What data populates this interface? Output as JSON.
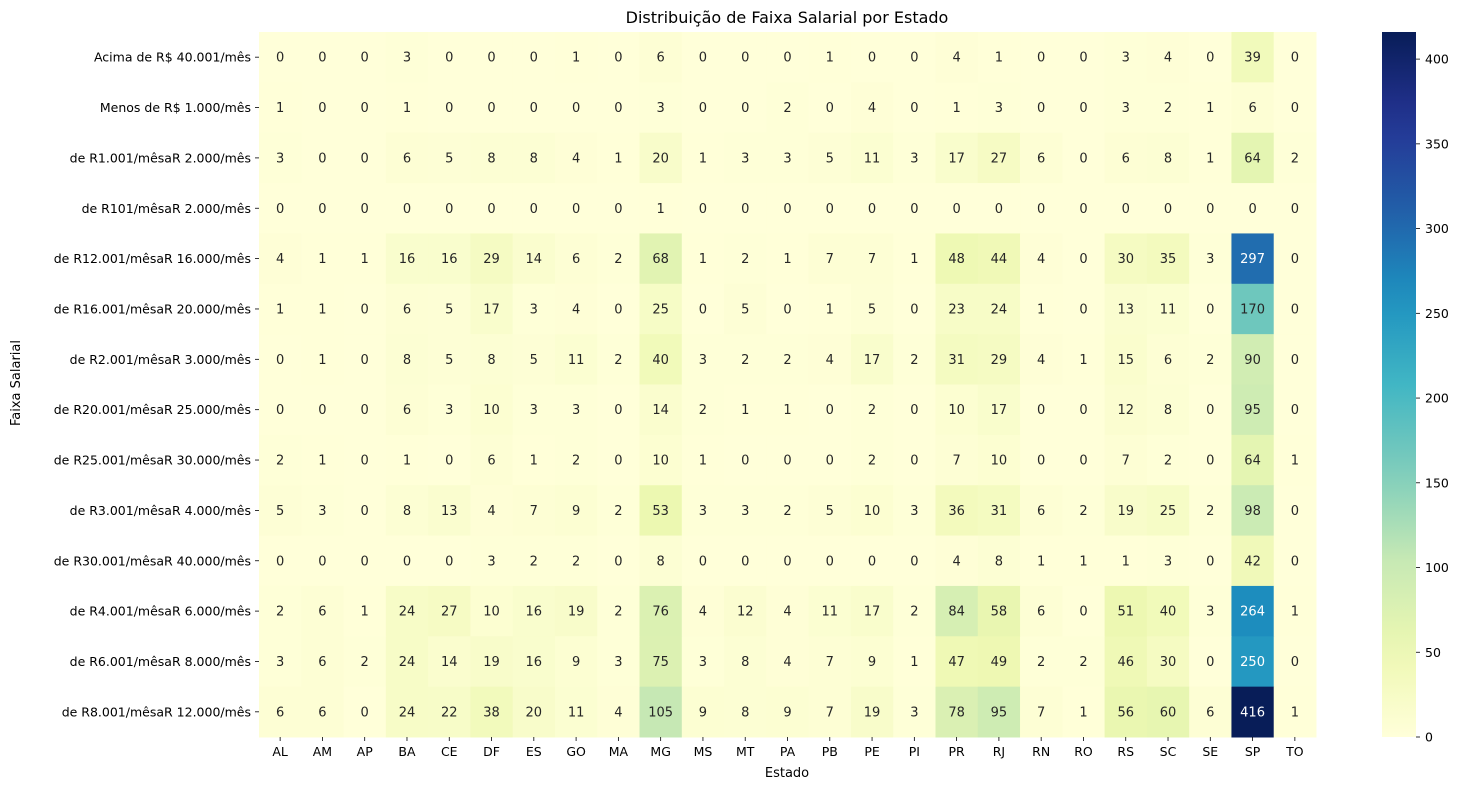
{
  "chart_data": {
    "type": "heatmap",
    "title": "Distribuição de Faixa Salarial por Estado",
    "xlabel": "Estado",
    "ylabel": "Faixa Salarial",
    "x_categories": [
      "AL",
      "AM",
      "AP",
      "BA",
      "CE",
      "DF",
      "ES",
      "GO",
      "MA",
      "MG",
      "MS",
      "MT",
      "PA",
      "PB",
      "PE",
      "PI",
      "PR",
      "RJ",
      "RN",
      "RO",
      "RS",
      "SC",
      "SE",
      "SP",
      "TO"
    ],
    "y_categories": [
      "Acima de R$ 40.001/mês",
      "Menos de R$ 1.000/mês",
      "de R1.001/mêsaR 2.000/mês",
      "de R101/mêsaR 2.000/mês",
      "de R12.001/mêsaR 16.000/mês",
      "de R16.001/mêsaR 20.000/mês",
      "de R2.001/mêsaR 3.000/mês",
      "de R20.001/mêsaR 25.000/mês",
      "de R25.001/mêsaR 30.000/mês",
      "de R3.001/mêsaR 4.000/mês",
      "de R30.001/mêsaR 40.000/mês",
      "de R4.001/mêsaR 6.000/mês",
      "de R6.001/mêsaR 8.000/mês",
      "de R8.001/mêsaR 12.000/mês"
    ],
    "values": [
      [
        0,
        0,
        0,
        3,
        0,
        0,
        0,
        1,
        0,
        6,
        0,
        0,
        0,
        1,
        0,
        0,
        4,
        1,
        0,
        0,
        3,
        4,
        0,
        39,
        0
      ],
      [
        1,
        0,
        0,
        1,
        0,
        0,
        0,
        0,
        0,
        3,
        0,
        0,
        2,
        0,
        4,
        0,
        1,
        3,
        0,
        0,
        3,
        2,
        1,
        6,
        0
      ],
      [
        3,
        0,
        0,
        6,
        5,
        8,
        8,
        4,
        1,
        20,
        1,
        3,
        3,
        5,
        11,
        3,
        17,
        27,
        6,
        0,
        6,
        8,
        1,
        64,
        2
      ],
      [
        0,
        0,
        0,
        0,
        0,
        0,
        0,
        0,
        0,
        1,
        0,
        0,
        0,
        0,
        0,
        0,
        0,
        0,
        0,
        0,
        0,
        0,
        0,
        0,
        0
      ],
      [
        4,
        1,
        1,
        16,
        16,
        29,
        14,
        6,
        2,
        68,
        1,
        2,
        1,
        7,
        7,
        1,
        48,
        44,
        4,
        0,
        30,
        35,
        3,
        297,
        0
      ],
      [
        1,
        1,
        0,
        6,
        5,
        17,
        3,
        4,
        0,
        25,
        0,
        5,
        0,
        1,
        5,
        0,
        23,
        24,
        1,
        0,
        13,
        11,
        0,
        170,
        0
      ],
      [
        0,
        1,
        0,
        8,
        5,
        8,
        5,
        11,
        2,
        40,
        3,
        2,
        2,
        4,
        17,
        2,
        31,
        29,
        4,
        1,
        15,
        6,
        2,
        90,
        0
      ],
      [
        0,
        0,
        0,
        6,
        3,
        10,
        3,
        3,
        0,
        14,
        2,
        1,
        1,
        0,
        2,
        0,
        10,
        17,
        0,
        0,
        12,
        8,
        0,
        95,
        0
      ],
      [
        2,
        1,
        0,
        1,
        0,
        6,
        1,
        2,
        0,
        10,
        1,
        0,
        0,
        0,
        2,
        0,
        7,
        10,
        0,
        0,
        7,
        2,
        0,
        64,
        1
      ],
      [
        5,
        3,
        0,
        8,
        13,
        4,
        7,
        9,
        2,
        53,
        3,
        3,
        2,
        5,
        10,
        3,
        36,
        31,
        6,
        2,
        19,
        25,
        2,
        98,
        0
      ],
      [
        0,
        0,
        0,
        0,
        0,
        3,
        2,
        2,
        0,
        8,
        0,
        0,
        0,
        0,
        0,
        0,
        4,
        8,
        1,
        1,
        1,
        3,
        0,
        42,
        0
      ],
      [
        2,
        6,
        1,
        24,
        27,
        10,
        16,
        19,
        2,
        76,
        4,
        12,
        4,
        11,
        17,
        2,
        84,
        58,
        6,
        0,
        51,
        40,
        3,
        264,
        1
      ],
      [
        3,
        6,
        2,
        24,
        14,
        19,
        16,
        9,
        3,
        75,
        3,
        8,
        4,
        7,
        9,
        1,
        47,
        49,
        2,
        2,
        46,
        30,
        0,
        250,
        0
      ],
      [
        6,
        6,
        0,
        24,
        22,
        38,
        20,
        11,
        4,
        105,
        9,
        8,
        9,
        7,
        19,
        3,
        78,
        95,
        7,
        1,
        56,
        60,
        6,
        416,
        1
      ]
    ],
    "color_scale": {
      "name": "YlGnBu",
      "min": 0,
      "max": 416,
      "ticks": [
        0,
        50,
        100,
        150,
        200,
        250,
        300,
        350,
        400
      ]
    }
  }
}
